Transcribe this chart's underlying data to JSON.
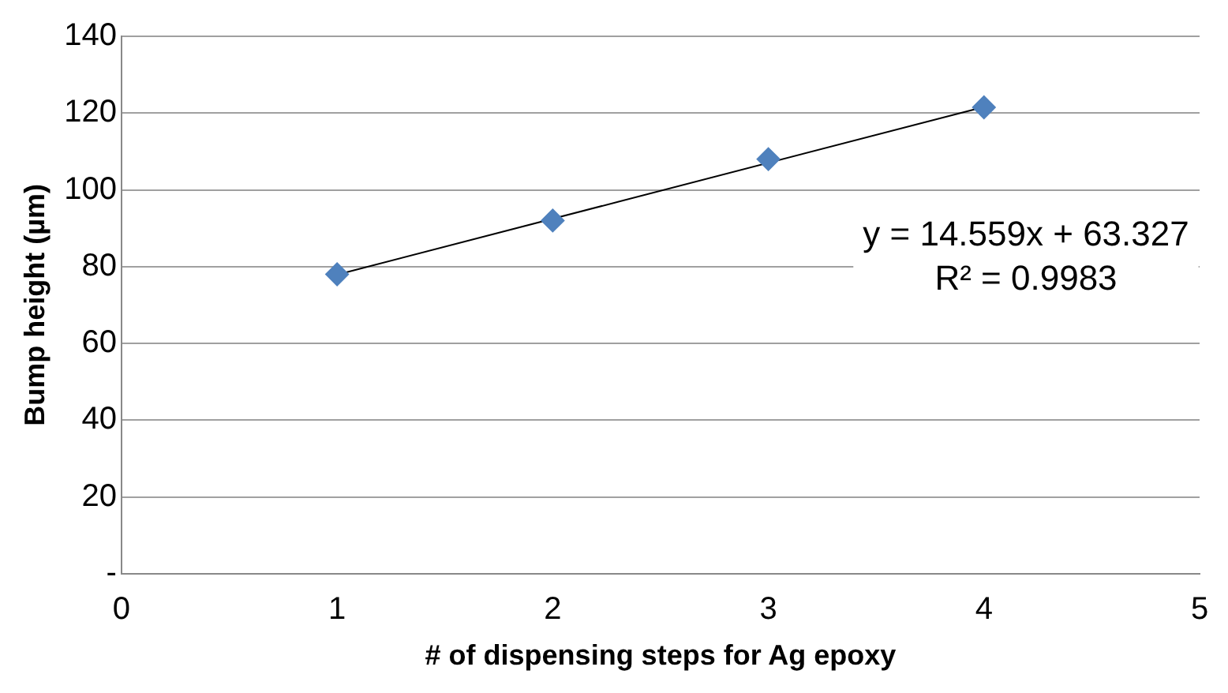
{
  "chart_data": {
    "type": "scatter",
    "xlabel": "# of dispensing steps for Ag epoxy",
    "ylabel": "Bump height (µm)",
    "series": [
      {
        "type": "scatter",
        "color": "#4f81bd",
        "marker": "diamond",
        "x": [
          1,
          2,
          3,
          4
        ],
        "values": [
          78,
          92,
          108,
          121.5
        ]
      },
      {
        "type": "line",
        "color": "#000000",
        "marker": "none",
        "x": [
          1,
          4
        ],
        "values": [
          77.9,
          121.6
        ]
      }
    ],
    "xlim": [
      0,
      5
    ],
    "xticks": [
      0,
      1,
      2,
      3,
      4,
      5
    ],
    "ylim": [
      0,
      140
    ],
    "yticks": [
      {
        "value": 0,
        "label": "-"
      },
      20,
      40,
      60,
      80,
      100,
      120,
      140
    ],
    "grid": "y",
    "annotations": [
      "y = 14.559x + 63.327",
      "R² = 0.9983"
    ]
  }
}
